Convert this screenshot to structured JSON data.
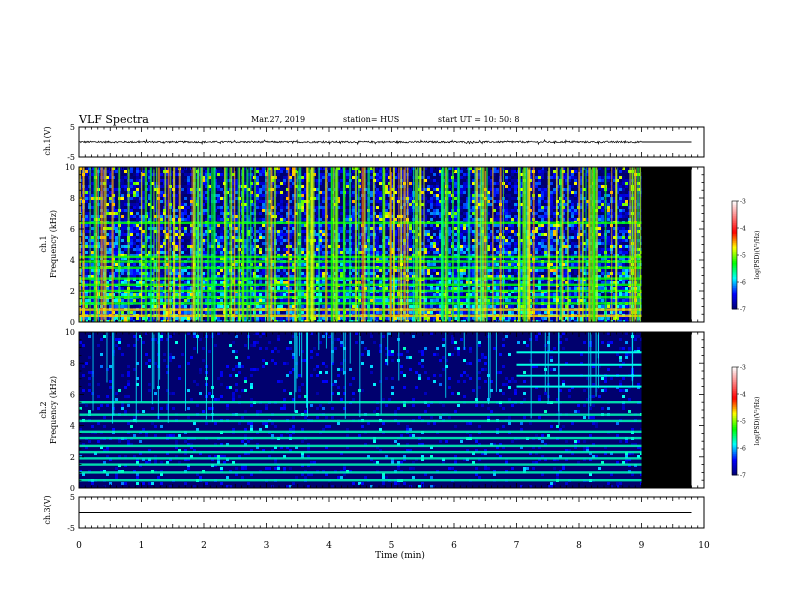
{
  "header": {
    "title": "VLF Spectra",
    "date": "Mar.27, 2019",
    "station": "station= HUS",
    "start": "start  UT =   10: 50: 8"
  },
  "chart_data": [
    {
      "type": "line",
      "panel": "ch1-waveform",
      "ylabel": "ch.1(V)",
      "ylim": [
        -5,
        5
      ],
      "yticks": [
        "5",
        "-5"
      ],
      "xlim": [
        0,
        10
      ],
      "series": [
        {
          "segment": "noisy",
          "x": [
            0,
            9.0
          ],
          "y_center": 0.0,
          "y_spread": 0.3
        },
        {
          "segment": "flat",
          "x": [
            9.0,
            9.8
          ],
          "y": 0.0
        }
      ]
    },
    {
      "type": "heatmap",
      "panel": "ch1-spectrogram",
      "ylabel": "ch.1\nFrequency  (kHz)",
      "ylim": [
        0,
        10
      ],
      "yticks": [
        "0",
        "2",
        "4",
        "6",
        "8",
        "10"
      ],
      "xlim": [
        0,
        10
      ],
      "data_end_min": 9.0,
      "dark_region": [
        9.0,
        9.8
      ],
      "background_level": -6.3,
      "bands_kHz": [
        0.4,
        0.8,
        1.2,
        1.6,
        2.0,
        2.4,
        2.8,
        3.5,
        3.9,
        4.2,
        6.4
      ],
      "colorbar": {
        "label": "log(PSD)(V²/Hz)",
        "ticks": [
          "-3",
          "-4",
          "-5",
          "-6",
          "-7"
        ],
        "range": [
          -7,
          -3
        ]
      }
    },
    {
      "type": "heatmap",
      "panel": "ch2-spectrogram",
      "ylabel": "ch.2\nFrequency  (kHz)",
      "ylim": [
        0,
        10
      ],
      "yticks": [
        "0",
        "2",
        "4",
        "6",
        "8",
        "10"
      ],
      "xlim": [
        0,
        10
      ],
      "data_end_min": 9.0,
      "dark_region": [
        9.0,
        9.8
      ],
      "background_level": -7.0,
      "bands_kHz": [
        0.5,
        1.0,
        1.5,
        1.9,
        2.3,
        2.7,
        3.2,
        3.6,
        4.3,
        4.7,
        5.5
      ],
      "late_bands_kHz": [
        6.5,
        7.2,
        7.9,
        8.7
      ],
      "late_start_min": 7.0,
      "colorbar": {
        "label": "log(PSD)(V²/Hz)",
        "ticks": [
          "-3",
          "-4",
          "-5",
          "-6",
          "-7"
        ],
        "range": [
          -7,
          -3
        ]
      }
    },
    {
      "type": "line",
      "panel": "ch3-waveform",
      "ylabel": "ch.3(V)",
      "ylim": [
        -5,
        5
      ],
      "yticks": [
        "5",
        "-5"
      ],
      "xlim": [
        0,
        10
      ],
      "series": [
        {
          "segment": "flat",
          "x": [
            0,
            9.8
          ],
          "y": 0.0
        }
      ]
    }
  ],
  "x_axis": {
    "label": "Time  (min)",
    "ticks": [
      "0",
      "1",
      "2",
      "3",
      "4",
      "5",
      "6",
      "7",
      "8",
      "9",
      "10"
    ]
  },
  "colors": {
    "background": "#000000",
    "dark_region": "#000000",
    "colormap": [
      "#00006e",
      "#0000ff",
      "#00ffff",
      "#00ff00",
      "#ffff00",
      "#ff0000",
      "#ff8080",
      "#ffffff"
    ]
  }
}
